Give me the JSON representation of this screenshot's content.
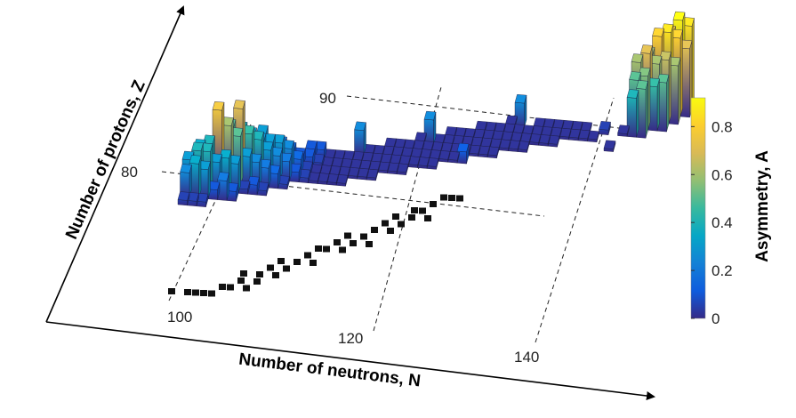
{
  "chart_data": {
    "type": "bar3d",
    "xlabel": "Number of neutrons, N",
    "ylabel": "Number of protons, Z",
    "colorbar_label": "Asymmetry, A",
    "x_ticks": [
      "100",
      "120",
      "140"
    ],
    "x_tick_values": [
      100,
      120,
      140
    ],
    "y_ticks": [
      "80",
      "90"
    ],
    "y_tick_values": [
      80,
      90
    ],
    "colorbar_ticks": [
      "0",
      "0.2",
      "0.4",
      "0.6",
      "0.8"
    ],
    "colorbar_tick_values": [
      0,
      0.2,
      0.4,
      0.6,
      0.8
    ],
    "colorbar_range": [
      0,
      0.92
    ],
    "colormap": [
      "#352a87",
      "#0f5cdd",
      "#1481d6",
      "#06a7c6",
      "#38b99e",
      "#92bf73",
      "#d9ba56",
      "#fcce2e",
      "#f9fb0e"
    ],
    "bars_by_N": [
      {
        "N": 98,
        "Z0": 78,
        "A": [
          0.05,
          0.25,
          0.3
        ]
      },
      {
        "N": 99,
        "Z0": 78,
        "A": [
          0.05,
          0.35,
          0.4,
          0.35
        ]
      },
      {
        "N": 100,
        "Z0": 78,
        "A": [
          0.05,
          0.3,
          0.4,
          0.4
        ]
      },
      {
        "N": 101,
        "Z0": 79,
        "A": [
          0.1,
          0.3,
          0.75,
          0.45
        ]
      },
      {
        "N": 102,
        "Z0": 79,
        "A": [
          0.2,
          0.35,
          0.6,
          0.5,
          0.4
        ]
      },
      {
        "N": 103,
        "Z0": 79,
        "A": [
          0.1,
          0.3,
          0.5,
          0.7,
          0.4
        ]
      },
      {
        "N": 104,
        "Z0": 80,
        "A": [
          0.05,
          0.3,
          0.45,
          0.35
        ]
      },
      {
        "N": 105,
        "Z0": 80,
        "A": [
          0.1,
          0.25,
          0.4,
          0.3,
          0.3
        ]
      },
      {
        "N": 106,
        "Z0": 80,
        "A": [
          0.05,
          0.2,
          0.3,
          0.3
        ]
      },
      {
        "N": 107,
        "Z0": 81,
        "A": [
          0.15,
          0.25,
          0.3,
          0.2
        ]
      },
      {
        "N": 108,
        "Z0": 81,
        "A": [
          0.05,
          0.2,
          0.25,
          0.15
        ]
      },
      {
        "N": 109,
        "Z0": 82,
        "A": [
          0.1,
          0.15,
          0.1
        ]
      },
      {
        "N": 110,
        "Z0": 82,
        "A": [
          0.05,
          0.05,
          0.1,
          0.1
        ]
      },
      {
        "N": 111,
        "Z0": 82,
        "A": [
          0.02,
          0.02,
          0.05,
          0.1
        ]
      },
      {
        "N": 112,
        "Z0": 82,
        "A": [
          0.02,
          0.02,
          0.02,
          0.02
        ]
      },
      {
        "N": 113,
        "Z0": 82,
        "A": [
          0.02,
          0.02,
          0.02,
          0.02
        ]
      },
      {
        "N": 114,
        "Z0": 82,
        "A": [
          0.02,
          0.02,
          0.02,
          0.02
        ]
      },
      {
        "N": 115,
        "Z0": 83,
        "A": [
          0.02,
          0.02,
          0.02,
          0.25
        ]
      },
      {
        "N": 116,
        "Z0": 83,
        "A": [
          0.02,
          0.02,
          0.02,
          0.02
        ]
      },
      {
        "N": 117,
        "Z0": 83,
        "A": [
          0.02,
          0.02,
          0.02,
          0.02
        ]
      },
      {
        "N": 118,
        "Z0": 84,
        "A": [
          0.02,
          0.02,
          0.02,
          0.02
        ]
      },
      {
        "N": 119,
        "Z0": 84,
        "A": [
          0.02,
          0.02,
          0.02,
          0.02
        ]
      },
      {
        "N": 120,
        "Z0": 84,
        "A": [
          0.02,
          0.02,
          0.02,
          0.02
        ]
      },
      {
        "N": 121,
        "Z0": 85,
        "A": [
          0.02,
          0.02,
          0.02,
          0.02
        ]
      },
      {
        "N": 122,
        "Z0": 85,
        "A": [
          0.02,
          0.02,
          0.02,
          0.25
        ]
      },
      {
        "N": 123,
        "Z0": 85,
        "A": [
          0.02,
          0.02,
          0.02,
          0.02
        ]
      },
      {
        "N": 124,
        "Z0": 86,
        "A": [
          0.02,
          0.02,
          0.02,
          0.02
        ]
      },
      {
        "N": 125,
        "Z0": 86,
        "A": [
          0.02,
          0.02,
          0.02,
          0.02
        ]
      },
      {
        "N": 126,
        "Z0": 86,
        "A": [
          0.12,
          0.02,
          0.02,
          0.02
        ]
      },
      {
        "N": 127,
        "Z0": 87,
        "A": [
          0.02,
          0.02,
          0.02,
          0.02
        ]
      },
      {
        "N": 128,
        "Z0": 87,
        "A": [
          0.02,
          0.02,
          0.02,
          0.02
        ]
      },
      {
        "N": 129,
        "Z0": 87,
        "A": [
          0.02,
          0.02,
          0.02,
          0.02
        ]
      },
      {
        "N": 130,
        "Z0": 88,
        "A": [
          0.02,
          0.02,
          0.02,
          0.02
        ]
      },
      {
        "N": 131,
        "Z0": 88,
        "A": [
          0.02,
          0.02,
          0.02,
          0.25
        ]
      },
      {
        "N": 132,
        "Z0": 88,
        "A": [
          0.02,
          0.02,
          0.02
        ]
      },
      {
        "N": 133,
        "Z0": 89,
        "A": [
          0.02,
          0.02,
          0.02
        ]
      },
      {
        "N": 134,
        "Z0": 89,
        "A": [
          0.02,
          0.02,
          0.02
        ]
      },
      {
        "N": 135,
        "Z0": 89,
        "A": [
          0.02,
          0.02,
          0.02
        ]
      },
      {
        "N": 136,
        "Z0": 90,
        "A": [
          0.02,
          0.02
        ]
      },
      {
        "N": 137,
        "Z0": 90,
        "A": [
          0.02,
          0.02
        ]
      },
      {
        "N": 138,
        "Z0": 90,
        "A": [
          0.02,
          0.02
        ]
      },
      {
        "N": 139,
        "Z0": 90,
        "A": [
          0.02
        ]
      },
      {
        "N": 140,
        "Z0": 91,
        "A": [
          0.05
        ]
      },
      {
        "N": 141,
        "Z0": 89,
        "A": [
          0.02
        ]
      },
      {
        "N": 142,
        "Z0": 91,
        "A": [
          0.02
        ]
      },
      {
        "N": 143,
        "Z0": 91,
        "A": [
          0.4,
          0.5,
          0.6
        ]
      },
      {
        "N": 144,
        "Z0": 91,
        "A": [
          0.5,
          0.55,
          0.7,
          0.6
        ]
      },
      {
        "N": 145,
        "Z0": 92,
        "A": [
          0.45,
          0.6,
          0.8,
          0.7
        ]
      },
      {
        "N": 146,
        "Z0": 92,
        "A": [
          0.5,
          0.65,
          0.85,
          0.75
        ]
      },
      {
        "N": 147,
        "Z0": 93,
        "A": [
          0.6,
          0.8,
          0.9
        ]
      },
      {
        "N": 148,
        "Z0": 94,
        "A": [
          0.7,
          0.85
        ]
      }
    ],
    "projection_points": [
      [
        102,
        79
      ],
      [
        104,
        79
      ],
      [
        105,
        79
      ],
      [
        106,
        79
      ],
      [
        107,
        79
      ],
      [
        108,
        80
      ],
      [
        109,
        80
      ],
      [
        110,
        81
      ],
      [
        110,
        82
      ],
      [
        111,
        80
      ],
      [
        112,
        81
      ],
      [
        112,
        82
      ],
      [
        113,
        83
      ],
      [
        114,
        82
      ],
      [
        114,
        84
      ],
      [
        115,
        83
      ],
      [
        116,
        84
      ],
      [
        117,
        85
      ],
      [
        118,
        84
      ],
      [
        118,
        86
      ],
      [
        119,
        86
      ],
      [
        120,
        87
      ],
      [
        121,
        86
      ],
      [
        121,
        88
      ],
      [
        122,
        87
      ],
      [
        123,
        88
      ],
      [
        124,
        89
      ],
      [
        124,
        87
      ],
      [
        125,
        90
      ],
      [
        126,
        89
      ],
      [
        126,
        91
      ],
      [
        127,
        90
      ],
      [
        128,
        91
      ],
      [
        128,
        92
      ],
      [
        129,
        92
      ],
      [
        130,
        93
      ],
      [
        130,
        91
      ],
      [
        131,
        94
      ],
      [
        132,
        94
      ],
      [
        133,
        94
      ]
    ]
  }
}
